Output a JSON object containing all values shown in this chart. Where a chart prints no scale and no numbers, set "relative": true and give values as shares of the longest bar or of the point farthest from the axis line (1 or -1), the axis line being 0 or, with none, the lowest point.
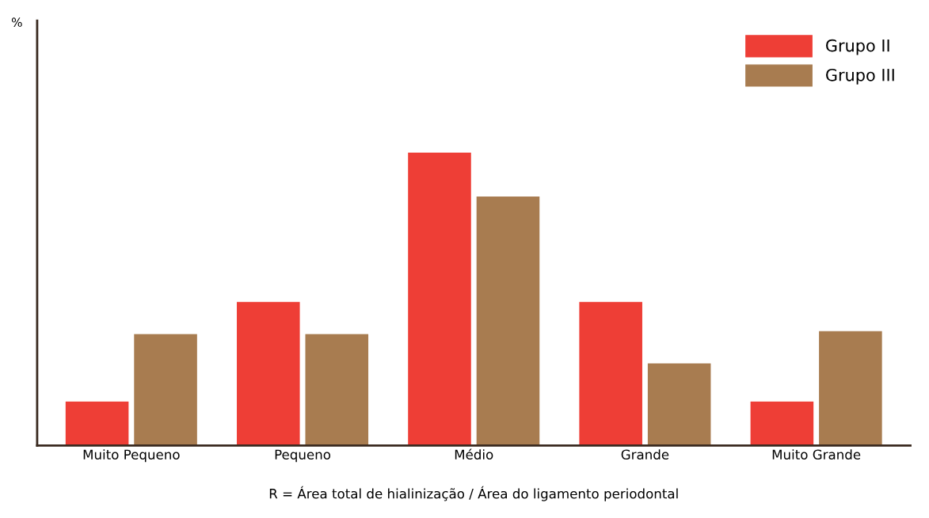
{
  "chart_data": {
    "type": "bar",
    "relative": true,
    "annotations": [
      "%"
    ],
    "xlabel": "R = Área total de hialinização / Área do ligamento periodontal",
    "categories": [
      "Muito Pequeno",
      "Pequeno",
      "Médio",
      "Grande",
      "Muito Grande"
    ],
    "series": [
      {
        "name": "Grupo II",
        "color": "#ee3e36",
        "values": [
          0.15,
          0.49,
          1,
          0.49,
          0.15
        ]
      },
      {
        "name": "Grupo III",
        "color": "#a87c50",
        "values": [
          0.38,
          0.38,
          0.85,
          0.28,
          0.39
        ]
      }
    ],
    "legend": "top right",
    "grid": false
  }
}
